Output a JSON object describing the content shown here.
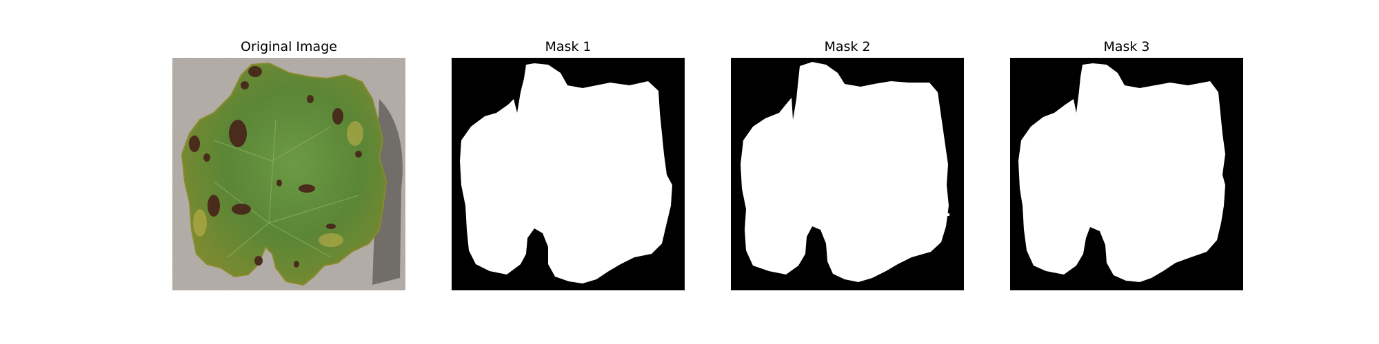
{
  "panels": [
    {
      "title": "Original Image",
      "kind": "photo"
    },
    {
      "title": "Mask 1",
      "kind": "mask"
    },
    {
      "title": "Mask 2",
      "kind": "mask"
    },
    {
      "title": "Mask 3",
      "kind": "mask"
    }
  ],
  "colors": {
    "background": "#ffffff",
    "mask_bg": "#000000",
    "mask_fg": "#ffffff",
    "leaf": "#5f8a3a",
    "lesion": "#4a2c1c",
    "table": "#b7b1ad"
  }
}
